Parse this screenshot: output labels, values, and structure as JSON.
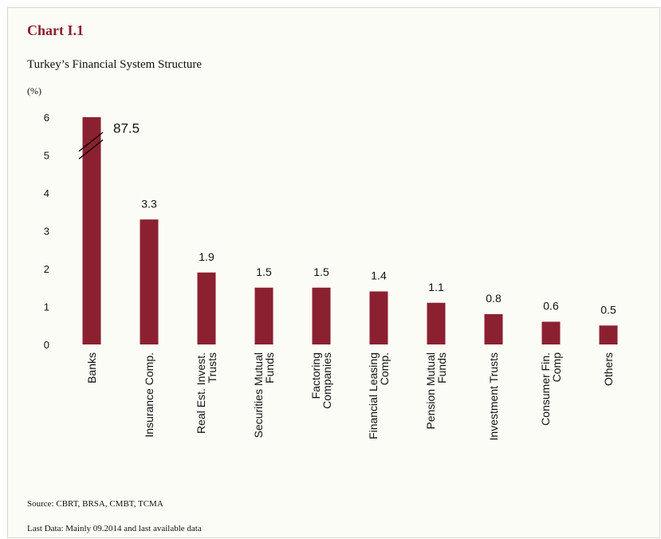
{
  "header": {
    "chart_number": "Chart I.1",
    "title": "Turkey’s Financial System Structure",
    "unit": "(%)"
  },
  "footer": {
    "source": "Source: CBRT, BRSA, CMBT, TCMA",
    "last_data": "Last Data: Mainly 09.2014 and last available data"
  },
  "chart_data": {
    "type": "bar",
    "title": "Turkey’s Financial System Structure",
    "ylabel": "(%)",
    "xlabel": "",
    "ylim": [
      0,
      6
    ],
    "yticks": [
      0,
      1,
      2,
      3,
      4,
      5,
      6
    ],
    "grid": false,
    "legend": "none",
    "axis_break": {
      "category": "Banks",
      "shown_value": "87.5"
    },
    "bar_color": "#8b2130",
    "categories": [
      "Banks",
      "Insurance Comp.",
      "Real Est. Invest. Trusts",
      "Securities Mutual Funds",
      "Factoring Companies",
      "Financial Leasing Comp.",
      "Pension Mutual Funds",
      "Investment Trusts",
      "Consumer Fin. Comp",
      "Others"
    ],
    "category_lines": [
      [
        "Banks"
      ],
      [
        "Insurance Comp."
      ],
      [
        "Real Est. Invest.",
        "Trusts"
      ],
      [
        "Securities Mutual",
        "Funds"
      ],
      [
        "Factoring",
        "Companies"
      ],
      [
        "Financial Leasing",
        "Comp."
      ],
      [
        "Pension Mutual",
        "Funds"
      ],
      [
        "Investment Trusts"
      ],
      [
        "Consumer Fin.",
        "Comp"
      ],
      [
        "Others"
      ]
    ],
    "values": [
      87.5,
      3.3,
      1.9,
      1.5,
      1.5,
      1.4,
      1.1,
      0.8,
      0.6,
      0.5
    ],
    "data_labels": [
      "87.5",
      "3.3",
      "1.9",
      "1.5",
      "1.5",
      "1.4",
      "1.1",
      "0.8",
      "0.6",
      "0.5"
    ]
  }
}
